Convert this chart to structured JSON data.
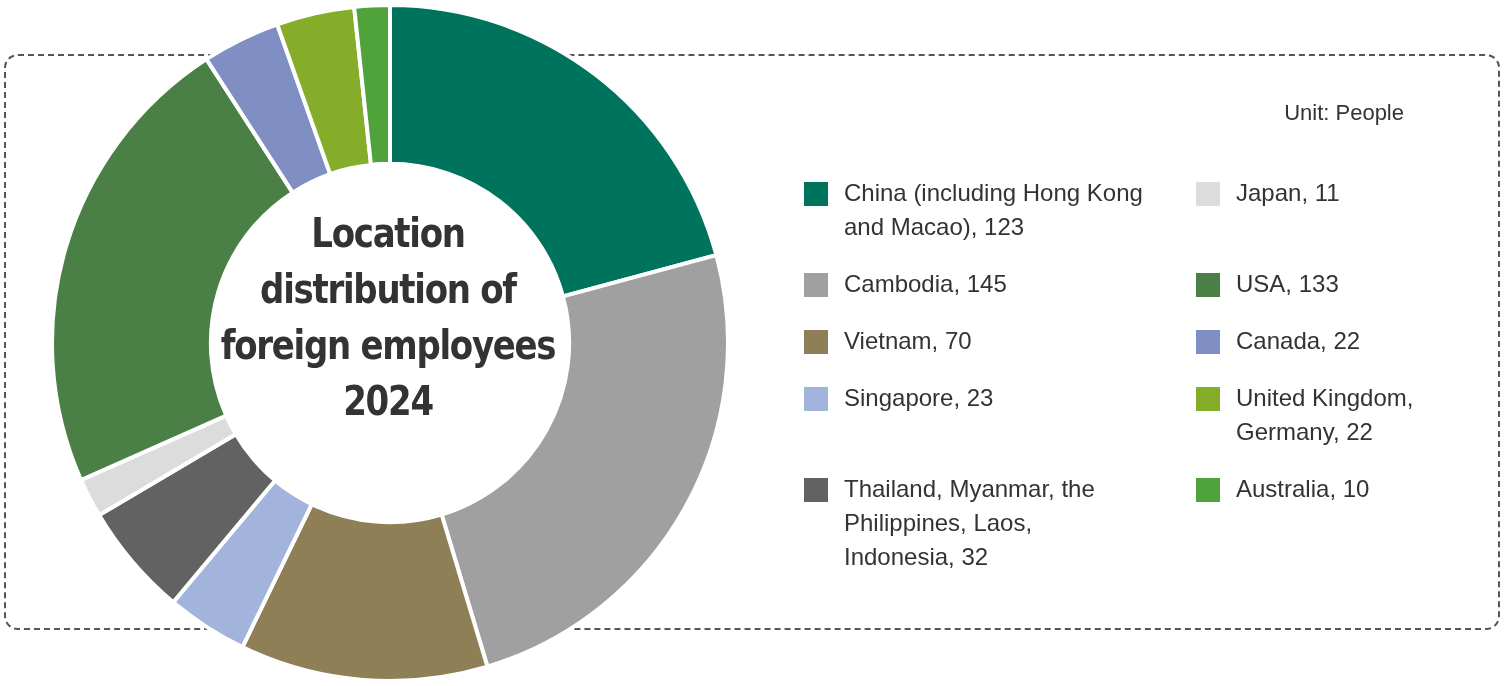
{
  "chart_data": {
    "type": "donut",
    "title": "Location distribution of foreign employees 2024",
    "categories": [
      "China (including Hong Kong and Macao), 123",
      "Cambodia, 145",
      "Vietnam, 70",
      "Singapore, 23",
      "Thailand, Myanmar, the Philippines, Laos, Indonesia, 32",
      "Japan, 11",
      "USA, 133",
      "Canada, 22",
      "United Kingdom, Germany, 22",
      "Australia, 10"
    ],
    "values": [
      123,
      145,
      70,
      23,
      32,
      11,
      133,
      22,
      22,
      10
    ],
    "colors": [
      "#00735d",
      "#a0a0a0",
      "#8f7f57",
      "#a3b4dc",
      "#626262",
      "#dcdcdc",
      "#4a8046",
      "#7f8fc4",
      "#85ad2a",
      "#4fa33a"
    ],
    "annotations": [
      "Unit: People"
    ],
    "legend": "right"
  }
}
